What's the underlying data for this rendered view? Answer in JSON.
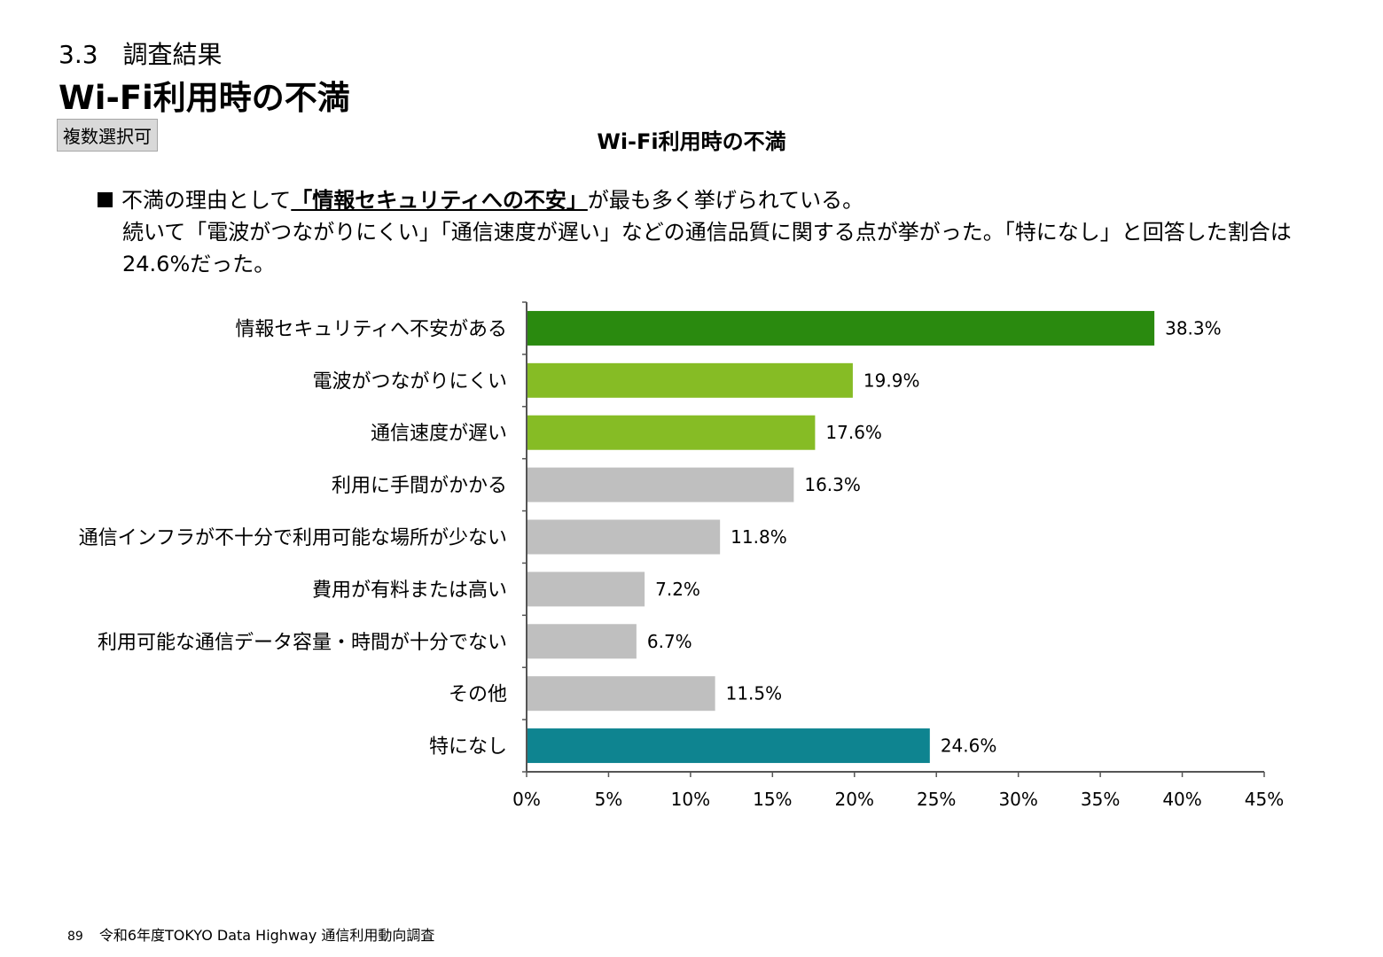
{
  "header": {
    "section": "3.3　調査結果",
    "title": "Wi-Fi利用時の不満",
    "badge": "複数選択可"
  },
  "summary": {
    "line1_pre": "不満の理由として",
    "line1_highlight": "「情報セキュリティへの不安」",
    "line1_post": "が最も多く挙げられている。",
    "line2": "続いて「電波がつながりにくい」「通信速度が遅い」などの通信品質に関する点が挙がった。「特になし」と回答した割合は",
    "line3": "24.6%だった。"
  },
  "chart_data": {
    "type": "bar",
    "orientation": "horizontal",
    "title": "Wi-Fi利用時の不満",
    "categories": [
      "情報セキュリティへ不安がある",
      "電波がつながりにくい",
      "通信速度が遅い",
      "利用に手間がかかる",
      "通信インフラが不十分で利用可能な場所が少ない",
      "費用が有料または高い",
      "利用可能な通信データ容量・時間が十分でない",
      "その他",
      "特になし"
    ],
    "values": [
      38.3,
      19.9,
      17.6,
      16.3,
      11.8,
      7.2,
      6.7,
      11.5,
      24.6
    ],
    "value_labels": [
      "38.3%",
      "19.9%",
      "17.6%",
      "16.3%",
      "11.8%",
      "7.2%",
      "6.7%",
      "11.5%",
      "24.6%"
    ],
    "colors": [
      "#2a8a0f",
      "#86bc25",
      "#86bc25",
      "#bfbfbf",
      "#bfbfbf",
      "#bfbfbf",
      "#bfbfbf",
      "#bfbfbf",
      "#0e8490"
    ],
    "xlim": [
      0,
      45
    ],
    "xticks": [
      0,
      5,
      10,
      15,
      20,
      25,
      30,
      35,
      40,
      45
    ],
    "xtick_labels": [
      "0%",
      "5%",
      "10%",
      "15%",
      "20%",
      "25%",
      "30%",
      "35%",
      "40%",
      "45%"
    ],
    "grid": false
  },
  "footer": {
    "page_number": "89",
    "text": "令和6年度TOKYO Data Highway 通信利用動向調査"
  }
}
